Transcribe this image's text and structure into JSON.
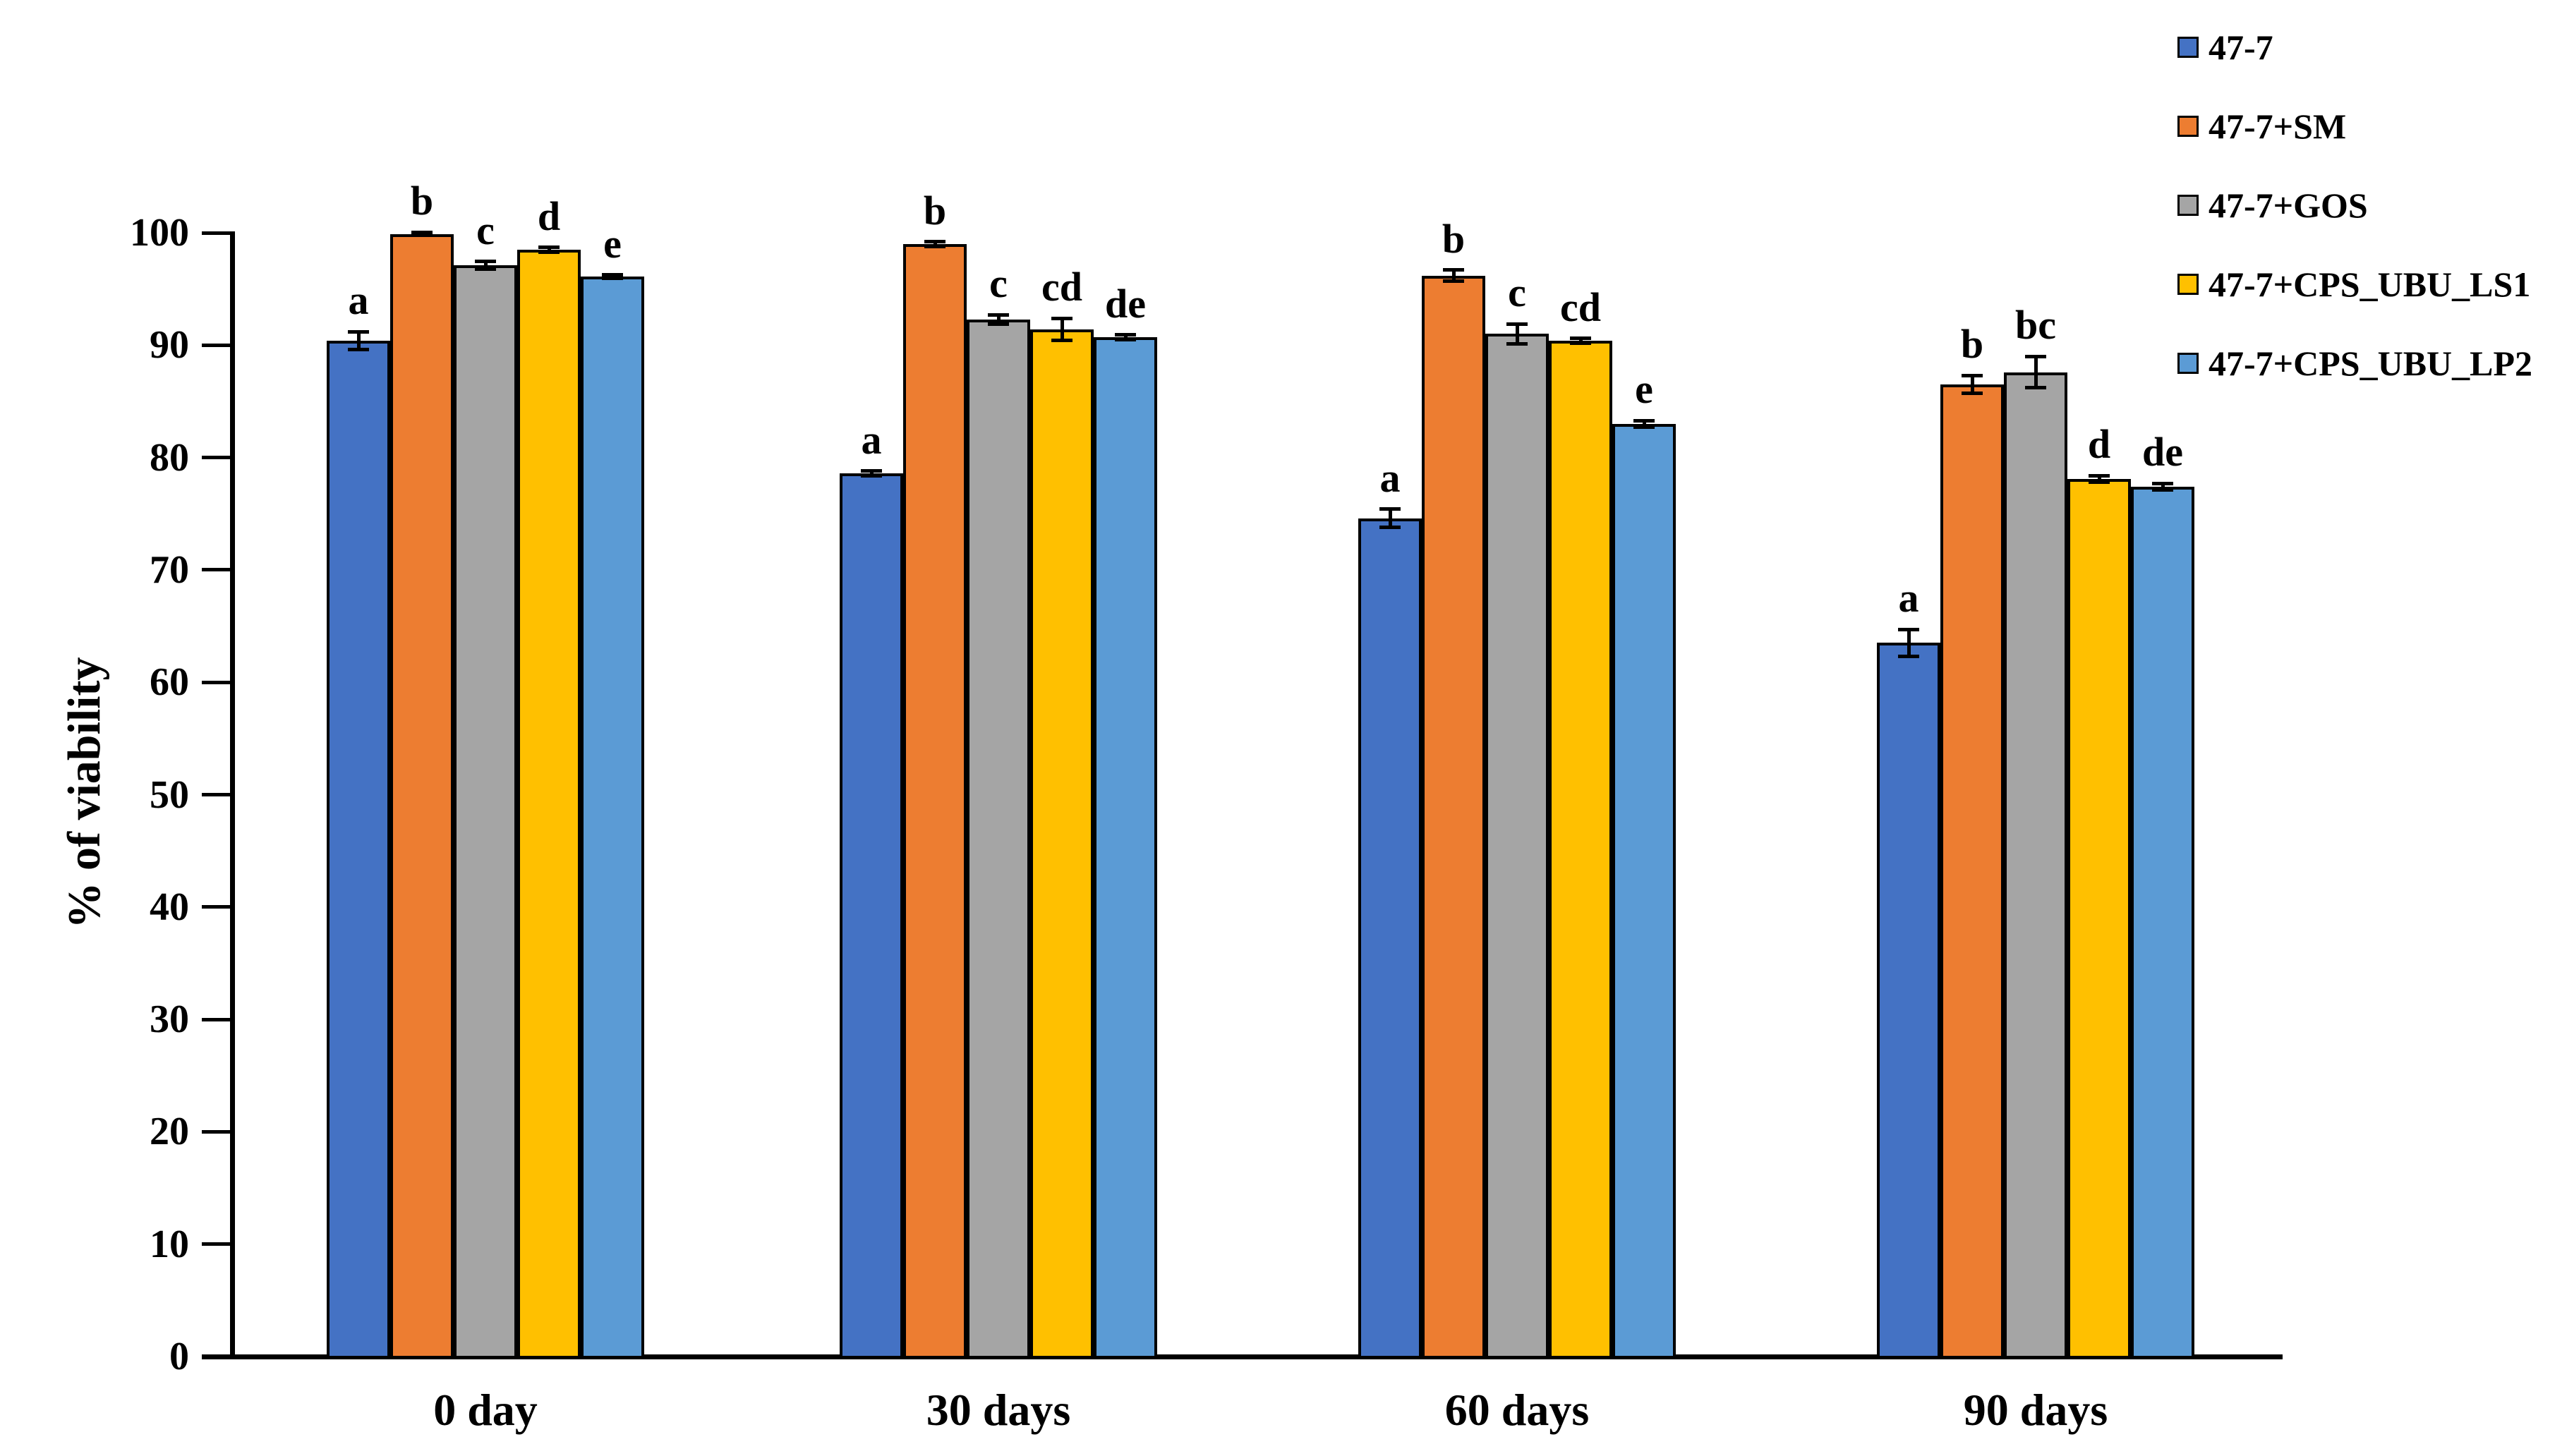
{
  "chart_data": {
    "type": "bar",
    "title": "",
    "xlabel": "",
    "ylabel": "% of viability",
    "ylim": [
      0,
      100
    ],
    "grid": false,
    "legend_position": "top-right",
    "axis_color": "#000000",
    "bar_outline": "#000000",
    "ytick_values": [
      0,
      10,
      20,
      30,
      40,
      50,
      60,
      70,
      80,
      90,
      100
    ],
    "ytick_labels": [
      "0",
      "10",
      "20",
      "30",
      "40",
      "50",
      "60",
      "70",
      "80",
      "90",
      "100"
    ],
    "categories": [
      "0 day",
      "30 days",
      "60 days",
      "90 days"
    ],
    "series": [
      {
        "name": "47-7",
        "color": "#4472C4",
        "values": [
          90.4,
          78.6,
          74.6,
          63.5
        ],
        "errors": [
          0.8,
          0.2,
          0.8,
          1.2
        ],
        "letters": [
          "a",
          "a",
          "a",
          "a"
        ]
      },
      {
        "name": "47-7+SM",
        "color": "#ED7D31",
        "values": [
          99.9,
          99.0,
          96.2,
          86.5
        ],
        "errors": [
          0.15,
          0.2,
          0.5,
          0.8
        ],
        "letters": [
          "b",
          "b",
          "b",
          "b"
        ]
      },
      {
        "name": "47-7+GOS",
        "color": "#A5A5A5",
        "values": [
          97.1,
          92.3,
          91.0,
          87.6
        ],
        "errors": [
          0.35,
          0.4,
          0.9,
          1.4
        ],
        "letters": [
          "c",
          "c",
          "c",
          "bc"
        ]
      },
      {
        "name": "47-7+CPS_UBU_LS1",
        "color": "#FFC000",
        "values": [
          98.5,
          91.4,
          90.4,
          78.1
        ],
        "errors": [
          0.2,
          1.0,
          0.2,
          0.3
        ],
        "letters": [
          "d",
          "cd",
          "cd",
          "d"
        ]
      },
      {
        "name": "47-7+CPS_UBU_LP2",
        "color": "#5B9BD5",
        "values": [
          96.1,
          90.7,
          83.0,
          77.4
        ],
        "errors": [
          0.15,
          0.2,
          0.3,
          0.3
        ],
        "letters": [
          "e",
          "de",
          "e",
          "de"
        ]
      }
    ]
  }
}
